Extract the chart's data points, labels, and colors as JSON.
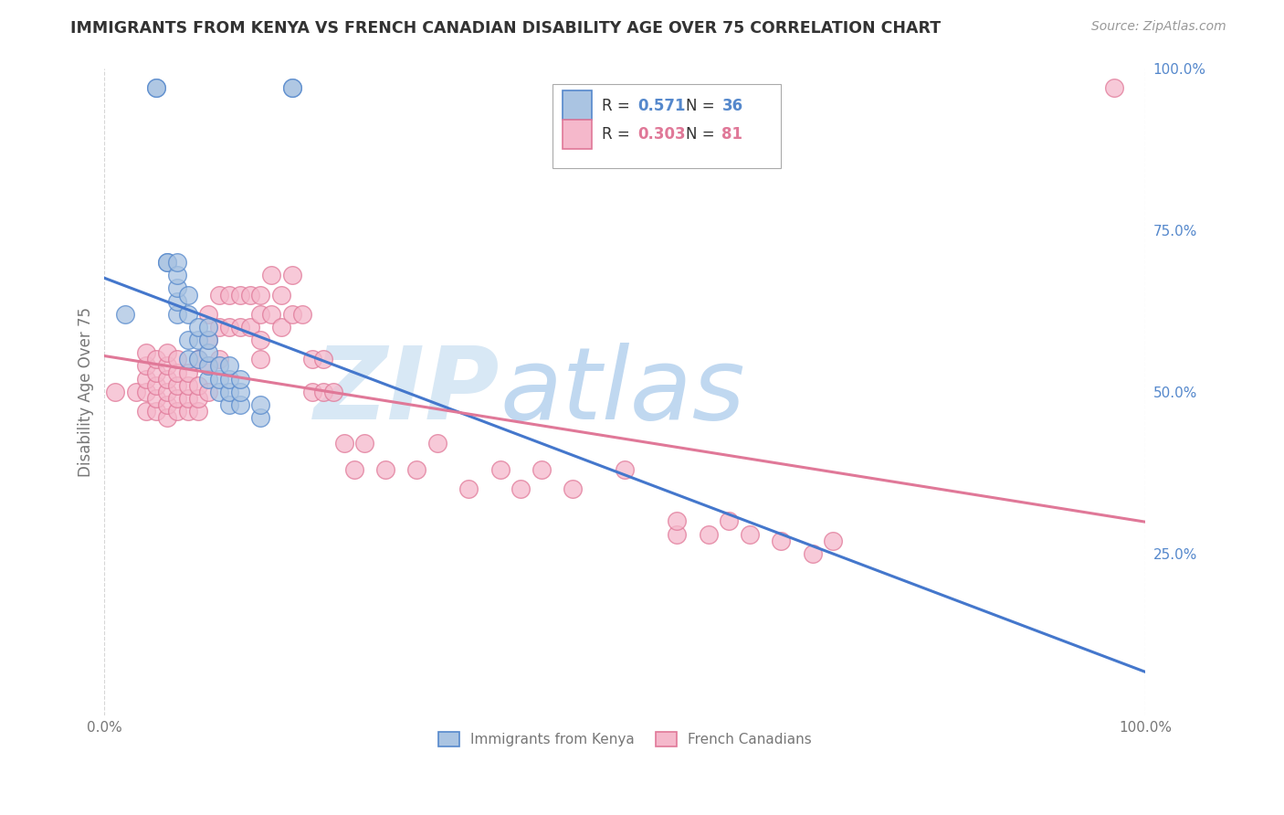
{
  "title": "IMMIGRANTS FROM KENYA VS FRENCH CANADIAN DISABILITY AGE OVER 75 CORRELATION CHART",
  "source": "Source: ZipAtlas.com",
  "ylabel": "Disability Age Over 75",
  "x_min": 0.0,
  "x_max": 1.0,
  "y_min": 0.0,
  "y_max": 1.0,
  "legend_labels": [
    "Immigrants from Kenya",
    "French Canadians"
  ],
  "r_kenya": 0.571,
  "n_kenya": 36,
  "r_french": 0.303,
  "n_french": 81,
  "kenya_color": "#aac4e2",
  "kenya_edge": "#5588cc",
  "french_color": "#f5b8cb",
  "french_edge": "#e07898",
  "kenya_line_color": "#4477cc",
  "french_line_color": "#e07898",
  "kenya_scatter_x": [
    0.02,
    0.05,
    0.05,
    0.06,
    0.06,
    0.07,
    0.07,
    0.07,
    0.07,
    0.07,
    0.08,
    0.08,
    0.08,
    0.08,
    0.09,
    0.09,
    0.09,
    0.1,
    0.1,
    0.1,
    0.1,
    0.1,
    0.11,
    0.11,
    0.11,
    0.12,
    0.12,
    0.12,
    0.12,
    0.13,
    0.13,
    0.13,
    0.15,
    0.15,
    0.18,
    0.18
  ],
  "kenya_scatter_y": [
    0.62,
    0.97,
    0.97,
    0.7,
    0.7,
    0.62,
    0.64,
    0.66,
    0.68,
    0.7,
    0.55,
    0.58,
    0.62,
    0.65,
    0.55,
    0.58,
    0.6,
    0.52,
    0.54,
    0.56,
    0.58,
    0.6,
    0.5,
    0.52,
    0.54,
    0.48,
    0.5,
    0.52,
    0.54,
    0.48,
    0.5,
    0.52,
    0.46,
    0.48,
    0.97,
    0.97
  ],
  "french_scatter_x": [
    0.01,
    0.03,
    0.04,
    0.04,
    0.04,
    0.04,
    0.04,
    0.05,
    0.05,
    0.05,
    0.05,
    0.05,
    0.06,
    0.06,
    0.06,
    0.06,
    0.06,
    0.06,
    0.07,
    0.07,
    0.07,
    0.07,
    0.07,
    0.08,
    0.08,
    0.08,
    0.08,
    0.09,
    0.09,
    0.09,
    0.09,
    0.1,
    0.1,
    0.1,
    0.1,
    0.11,
    0.11,
    0.11,
    0.12,
    0.12,
    0.13,
    0.13,
    0.14,
    0.14,
    0.15,
    0.15,
    0.15,
    0.15,
    0.16,
    0.16,
    0.17,
    0.17,
    0.18,
    0.18,
    0.19,
    0.2,
    0.2,
    0.21,
    0.21,
    0.22,
    0.23,
    0.24,
    0.25,
    0.27,
    0.3,
    0.32,
    0.35,
    0.38,
    0.4,
    0.42,
    0.45,
    0.5,
    0.55,
    0.55,
    0.58,
    0.6,
    0.62,
    0.65,
    0.68,
    0.7,
    0.97
  ],
  "french_scatter_y": [
    0.5,
    0.5,
    0.47,
    0.5,
    0.52,
    0.54,
    0.56,
    0.47,
    0.49,
    0.51,
    0.53,
    0.55,
    0.46,
    0.48,
    0.5,
    0.52,
    0.54,
    0.56,
    0.47,
    0.49,
    0.51,
    0.53,
    0.55,
    0.47,
    0.49,
    0.51,
    0.53,
    0.47,
    0.49,
    0.51,
    0.55,
    0.5,
    0.54,
    0.58,
    0.62,
    0.55,
    0.6,
    0.65,
    0.6,
    0.65,
    0.6,
    0.65,
    0.6,
    0.65,
    0.55,
    0.58,
    0.62,
    0.65,
    0.62,
    0.68,
    0.6,
    0.65,
    0.62,
    0.68,
    0.62,
    0.5,
    0.55,
    0.5,
    0.55,
    0.5,
    0.42,
    0.38,
    0.42,
    0.38,
    0.38,
    0.42,
    0.35,
    0.38,
    0.35,
    0.38,
    0.35,
    0.38,
    0.28,
    0.3,
    0.28,
    0.3,
    0.28,
    0.27,
    0.25,
    0.27,
    0.97
  ],
  "background_color": "#ffffff",
  "grid_color": "#cccccc",
  "watermark_zip": "ZIP",
  "watermark_atlas": "atlas",
  "watermark_color_zip": "#d8e8f5",
  "watermark_color_atlas": "#c0d8f0",
  "title_color": "#333333",
  "axis_label_color": "#777777",
  "right_tick_color": "#5588cc"
}
